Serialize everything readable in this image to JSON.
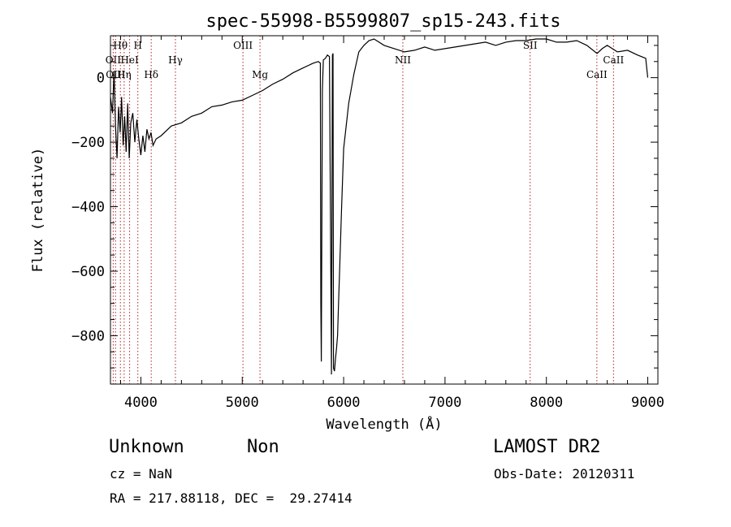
{
  "chart_data": {
    "type": "line",
    "title": "spec-55998-B5599807_sp15-243.fits",
    "xlabel": "Wavelength (Å)",
    "ylabel": "Flux (relative)",
    "xlim": [
      3700,
      9100
    ],
    "ylim": [
      -950,
      130
    ],
    "xticks": [
      4000,
      5000,
      6000,
      7000,
      8000,
      9000
    ],
    "yticks": [
      0,
      -200,
      -400,
      -600,
      -800
    ],
    "series": [
      {
        "x": [
          3700,
          3720,
          3735,
          3750,
          3765,
          3780,
          3795,
          3810,
          3825,
          3840,
          3855,
          3870,
          3885,
          3900,
          3920,
          3940,
          3960,
          3980,
          4000,
          4020,
          4040,
          4060,
          4080,
          4100,
          4120,
          4150,
          4200,
          4300,
          4400,
          4500,
          4600,
          4700,
          4800,
          4900,
          5000,
          5100,
          5200,
          5300,
          5400,
          5500,
          5600,
          5700,
          5750,
          5770,
          5775,
          5780,
          5790,
          5800,
          5820,
          5840,
          5860,
          5880,
          5885,
          5890,
          5895,
          5900,
          5910,
          5920,
          5930,
          5940,
          5950,
          5960,
          5980,
          6000,
          6050,
          6100,
          6150,
          6200,
          6250,
          6300,
          6400,
          6500,
          6600,
          6700,
          6800,
          6900,
          7000,
          7100,
          7200,
          7300,
          7400,
          7500,
          7600,
          7700,
          7800,
          7900,
          8000,
          8100,
          8200,
          8300,
          8400,
          8500,
          8550,
          8600,
          8700,
          8800,
          8900,
          8980,
          9000
        ],
        "y": [
          -60,
          -110,
          20,
          -150,
          -250,
          -90,
          -170,
          -60,
          -210,
          -120,
          -230,
          -80,
          -250,
          -140,
          -110,
          -200,
          -130,
          -190,
          -240,
          -180,
          -230,
          -160,
          -190,
          -170,
          -210,
          -190,
          -180,
          -150,
          -140,
          -120,
          -110,
          -90,
          -85,
          -75,
          -70,
          -55,
          -40,
          -20,
          -5,
          15,
          30,
          45,
          50,
          45,
          -700,
          -880,
          -40,
          55,
          60,
          70,
          65,
          -920,
          -400,
          70,
          75,
          -900,
          -910,
          -870,
          -840,
          -800,
          -700,
          -600,
          -400,
          -220,
          -80,
          10,
          80,
          100,
          115,
          120,
          100,
          90,
          80,
          85,
          95,
          85,
          90,
          95,
          100,
          105,
          110,
          100,
          110,
          115,
          115,
          120,
          120,
          110,
          110,
          115,
          100,
          75,
          90,
          100,
          80,
          85,
          70,
          60,
          0
        ]
      }
    ],
    "line_markers": [
      {
        "x": 3727,
        "label": "OII",
        "row": 1
      },
      {
        "x": 3750,
        "label": "OIII",
        "row": 2
      },
      {
        "x": 3798,
        "label": "Hθ",
        "row": 0
      },
      {
        "x": 3835,
        "label": "Hη",
        "row": 2
      },
      {
        "x": 3889,
        "label": "HeI",
        "row": 1
      },
      {
        "x": 3970,
        "label": "H",
        "row": 0
      },
      {
        "x": 4102,
        "label": "Hδ",
        "row": 2
      },
      {
        "x": 4341,
        "label": "Hγ",
        "row": 1
      },
      {
        "x": 5007,
        "label": "OIII",
        "row": 0
      },
      {
        "x": 5175,
        "label": "Mg",
        "row": 2
      },
      {
        "x": 6584,
        "label": "NII",
        "row": 1
      },
      {
        "x": 7840,
        "label": "SII",
        "row": 0
      },
      {
        "x": 8498,
        "label": "CaII",
        "row": 2
      },
      {
        "x": 8662,
        "label": "CaII",
        "row": 1
      }
    ]
  },
  "info": {
    "object_class": "Unknown",
    "subclass": "Non",
    "survey": "LAMOST DR2",
    "cz": "cz = NaN",
    "obs_date": "Obs-Date: 20120311",
    "coords": "RA = 217.88118, DEC =  29.27414"
  }
}
